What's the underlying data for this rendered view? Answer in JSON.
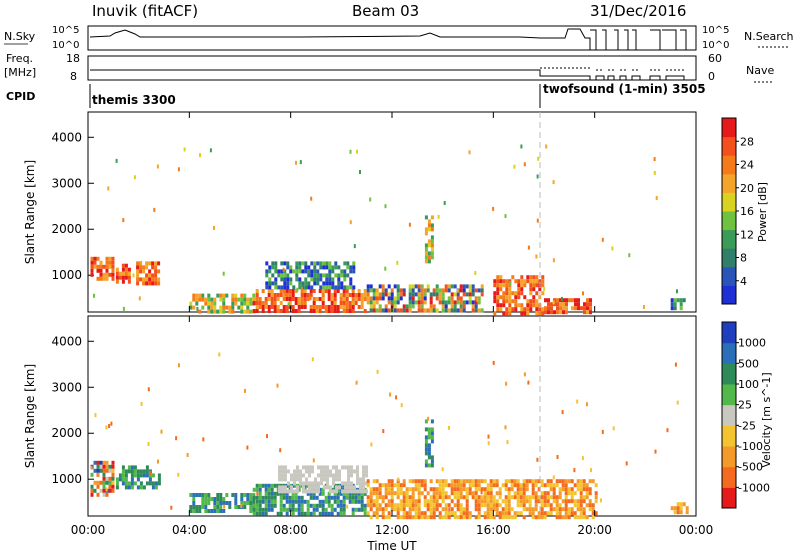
{
  "header": {
    "station": "Inuvik (fitACF)",
    "beam": "Beam 03",
    "date": "31/Dec/2016"
  },
  "status_panels": {
    "nsky": {
      "label": "N.Sky",
      "ticks": [
        "10^5",
        "10^0"
      ],
      "right_label": "N.Search",
      "right_ticks": [
        "10^5",
        "10^0"
      ]
    },
    "freq": {
      "label_line1": "Freq.",
      "label_line2": "[MHz]",
      "ticks": [
        "18",
        "8"
      ],
      "right_label": "Nave",
      "right_ticks": [
        "60",
        "0"
      ]
    },
    "cpid": {
      "label": "CPID",
      "modes": [
        {
          "name": "themis 3300",
          "start_hour": 0,
          "end_hour": 18
        },
        {
          "name": "twofsound (1-min) 3505",
          "start_hour": 18,
          "end_hour": 24
        }
      ]
    }
  },
  "chart_data": [
    {
      "type": "heatmap",
      "name": "Power",
      "ylabel": "Slant Range [km]",
      "ylim": [
        200,
        4550
      ],
      "yticks": [
        1000,
        2000,
        3000,
        4000
      ],
      "xlim": [
        0,
        24
      ],
      "colorbar": {
        "label": "Power [dB]",
        "ticks": [
          4,
          8,
          12,
          16,
          20,
          24,
          28
        ],
        "range": [
          0,
          32
        ],
        "colors": [
          "#1f2fd6",
          "#2a55b8",
          "#2f7f6a",
          "#3b9b58",
          "#6fc23f",
          "#d9d220",
          "#f4a42a",
          "#f47a1a",
          "#f4501e",
          "#e61a1a"
        ]
      },
      "regions": [
        {
          "t": [
            0.1,
            1.0
          ],
          "r": [
            900,
            1400
          ],
          "value": "high"
        },
        {
          "t": [
            1.1,
            1.6
          ],
          "r": [
            900,
            1250
          ],
          "value": "high"
        },
        {
          "t": [
            1.9,
            2.8
          ],
          "r": [
            850,
            1300
          ],
          "value": "high"
        },
        {
          "t": [
            4.0,
            6.5
          ],
          "r": [
            250,
            600
          ],
          "value": "mid"
        },
        {
          "t": [
            6.5,
            11.0
          ],
          "r": [
            200,
            700
          ],
          "value": "high"
        },
        {
          "t": [
            7.0,
            10.5
          ],
          "r": [
            700,
            1300
          ],
          "value": "low"
        },
        {
          "t": [
            11.0,
            15.5
          ],
          "r": [
            250,
            800
          ],
          "value": "mixed"
        },
        {
          "t": [
            13.3,
            13.6
          ],
          "r": [
            1300,
            2300
          ],
          "value": "mid"
        },
        {
          "t": [
            16.0,
            18.0
          ],
          "r": [
            200,
            1000
          ],
          "value": "high"
        },
        {
          "t": [
            18.0,
            19.8
          ],
          "r": [
            200,
            500
          ],
          "value": "high"
        },
        {
          "t": [
            23.0,
            23.6
          ],
          "r": [
            250,
            500
          ],
          "value": "low"
        }
      ]
    },
    {
      "type": "heatmap",
      "name": "Velocity",
      "ylabel": "Slant Range [km]",
      "ylim": [
        200,
        4550
      ],
      "yticks": [
        1000,
        2000,
        3000,
        4000
      ],
      "xlim": [
        0,
        24
      ],
      "xlabel": "Time UT",
      "xticks": [
        "00:00",
        "04:00",
        "08:00",
        "12:00",
        "16:00",
        "20:00",
        "00:00"
      ],
      "colorbar": {
        "label": "Velocity [m s^-1]",
        "ticks": [
          "1000",
          "500",
          "100",
          "25",
          "-25",
          "-100",
          "-500",
          "-1000"
        ],
        "colors": [
          "#1f3fbf",
          "#2a6fb8",
          "#2f8a5a",
          "#53b84a",
          "#c8c8c0",
          "#f4c430",
          "#f49a2a",
          "#f46a1e",
          "#e61a1a"
        ]
      },
      "regions": [
        {
          "t": [
            0.1,
            1.0
          ],
          "r": [
            700,
            1400
          ],
          "value": "mixed"
        },
        {
          "t": [
            1.1,
            2.8
          ],
          "r": [
            850,
            1300
          ],
          "value": "toward"
        },
        {
          "t": [
            4.0,
            6.5
          ],
          "r": [
            300,
            700
          ],
          "value": "toward"
        },
        {
          "t": [
            6.5,
            11.0
          ],
          "r": [
            250,
            900
          ],
          "value": "toward"
        },
        {
          "t": [
            7.5,
            11.0
          ],
          "r": [
            700,
            1300
          ],
          "value": "near-zero"
        },
        {
          "t": [
            13.3,
            13.6
          ],
          "r": [
            1300,
            2300
          ],
          "value": "toward"
        },
        {
          "t": [
            11.0,
            20.0
          ],
          "r": [
            200,
            1000
          ],
          "value": "away"
        },
        {
          "t": [
            23.0,
            23.6
          ],
          "r": [
            250,
            500
          ],
          "value": "away"
        }
      ]
    }
  ]
}
